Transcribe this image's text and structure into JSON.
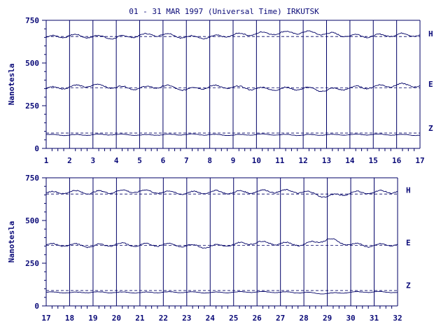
{
  "title": "01 - 31 MAR 1997 (Universal Time) IRKUTSK",
  "colors": {
    "ink": "#000066",
    "background": "#ffffff"
  },
  "chart_data": [
    {
      "type": "line",
      "ylabel": "Nanotesla",
      "ylim": [
        0,
        750
      ],
      "yticks": [
        0,
        250,
        500,
        750
      ],
      "xlim": [
        1,
        17
      ],
      "xticks": [
        "1",
        "2",
        "3",
        "4",
        "5",
        "6",
        "7",
        "8",
        "9",
        "10",
        "11",
        "12",
        "13",
        "14",
        "15",
        "16",
        "17"
      ],
      "series": [
        {
          "name": "H",
          "baseline": 655,
          "values": [
            650,
            660,
            655,
            648,
            662,
            668,
            652,
            650,
            664,
            672,
            676,
            680,
            672,
            660,
            658,
            666,
            664
          ]
        },
        {
          "name": "E",
          "baseline": 355,
          "values": [
            350,
            360,
            370,
            358,
            352,
            365,
            345,
            362,
            358,
            350,
            348,
            352,
            340,
            355,
            360,
            372,
            368
          ]
        },
        {
          "name": "Z",
          "baseline": 90,
          "values": [
            80,
            78,
            80,
            82,
            78,
            80,
            82,
            80,
            78,
            82,
            80,
            78,
            80,
            80,
            82,
            80,
            78
          ]
        }
      ]
    },
    {
      "type": "line",
      "ylabel": "Nanotesla",
      "ylim": [
        0,
        750
      ],
      "yticks": [
        0,
        250,
        500,
        750
      ],
      "xlim": [
        17,
        32
      ],
      "xticks": [
        "17",
        "18",
        "19",
        "20",
        "21",
        "22",
        "23",
        "24",
        "25",
        "26",
        "27",
        "28",
        "29",
        "30",
        "31",
        "32"
      ],
      "series": [
        {
          "name": "H",
          "baseline": 655,
          "values": [
            660,
            668,
            664,
            670,
            672,
            666,
            660,
            668,
            664,
            670,
            672,
            668,
            640,
            662,
            666,
            670
          ]
        },
        {
          "name": "E",
          "baseline": 355,
          "values": [
            355,
            358,
            350,
            362,
            355,
            360,
            352,
            348,
            360,
            372,
            365,
            360,
            390,
            360,
            352,
            362
          ]
        },
        {
          "name": "Z",
          "baseline": 90,
          "values": [
            80,
            78,
            80,
            79,
            78,
            80,
            80,
            78,
            80,
            82,
            80,
            78,
            72,
            80,
            82,
            80
          ]
        }
      ]
    }
  ]
}
